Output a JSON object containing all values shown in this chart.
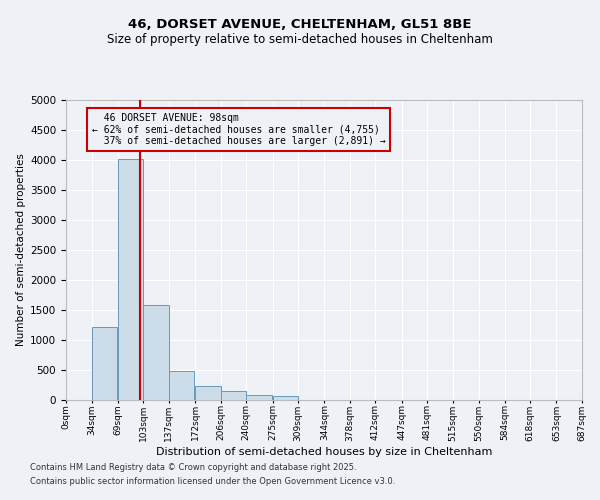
{
  "title_line1": "46, DORSET AVENUE, CHELTENHAM, GL51 8BE",
  "title_line2": "Size of property relative to semi-detached houses in Cheltenham",
  "xlabel": "Distribution of semi-detached houses by size in Cheltenham",
  "ylabel": "Number of semi-detached properties",
  "property_size": 98,
  "property_label": "46 DORSET AVENUE: 98sqm",
  "pct_smaller": 62,
  "pct_larger": 37,
  "count_smaller": 4755,
  "count_larger": 2891,
  "bar_color": "#ccdce8",
  "bar_edge_color": "#6699bb",
  "vline_color": "#cc0000",
  "annotation_box_color": "#cc0000",
  "background_color": "#eef2f7",
  "grid_color": "#ffffff",
  "bin_edges": [
    0,
    34,
    69,
    103,
    137,
    172,
    206,
    240,
    275,
    309,
    344,
    378,
    412,
    447,
    481,
    515,
    550,
    584,
    618,
    653,
    687
  ],
  "bin_labels": [
    "0sqm",
    "34sqm",
    "69sqm",
    "103sqm",
    "137sqm",
    "172sqm",
    "206sqm",
    "240sqm",
    "275sqm",
    "309sqm",
    "344sqm",
    "378sqm",
    "412sqm",
    "447sqm",
    "481sqm",
    "515sqm",
    "550sqm",
    "584sqm",
    "618sqm",
    "653sqm",
    "687sqm"
  ],
  "bar_heights": [
    0,
    1220,
    4020,
    1580,
    490,
    240,
    150,
    90,
    60,
    0,
    0,
    0,
    0,
    0,
    0,
    0,
    0,
    0,
    0,
    0
  ],
  "ylim": [
    0,
    5000
  ],
  "yticks": [
    0,
    500,
    1000,
    1500,
    2000,
    2500,
    3000,
    3500,
    4000,
    4500,
    5000
  ],
  "footnote1": "Contains HM Land Registry data © Crown copyright and database right 2025.",
  "footnote2": "Contains public sector information licensed under the Open Government Licence v3.0."
}
